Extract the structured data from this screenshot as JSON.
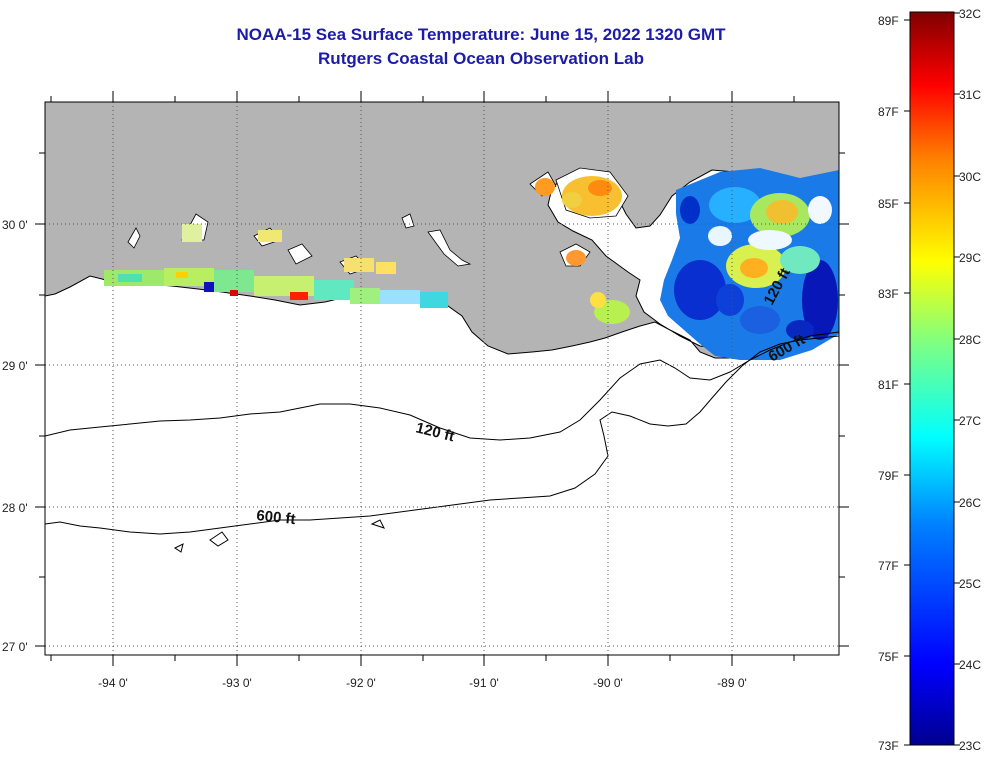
{
  "title": "NOAA-15 Sea Surface Temperature:  June 15, 2022 1320 GMT",
  "subtitle": "Rutgers Coastal Ocean Observation Lab",
  "longitude_labels": [
    "-94 0'",
    "-93 0'",
    "-92 0'",
    "-91 0'",
    "-90 0'",
    "-89 0'"
  ],
  "latitude_labels": [
    "30 0'",
    "29 0'",
    "28 0'",
    "27 0'"
  ],
  "contour_labels": [
    "120 ft",
    "600 ft",
    "120 ft",
    "600 ft"
  ],
  "colorbar": {
    "fahrenheit_labels": [
      "89F",
      "87F",
      "85F",
      "83F",
      "81F",
      "79F",
      "77F",
      "75F",
      "73F"
    ],
    "celsius_labels": [
      "32C",
      "31C",
      "30C",
      "29C",
      "28C",
      "27C",
      "26C",
      "25C",
      "24C",
      "23C"
    ],
    "range_celsius": [
      23,
      32
    ]
  },
  "colors": {
    "title": "#1c1ca8",
    "land": "#b4b4b4",
    "ocean_no_data": "#ffffff"
  }
}
